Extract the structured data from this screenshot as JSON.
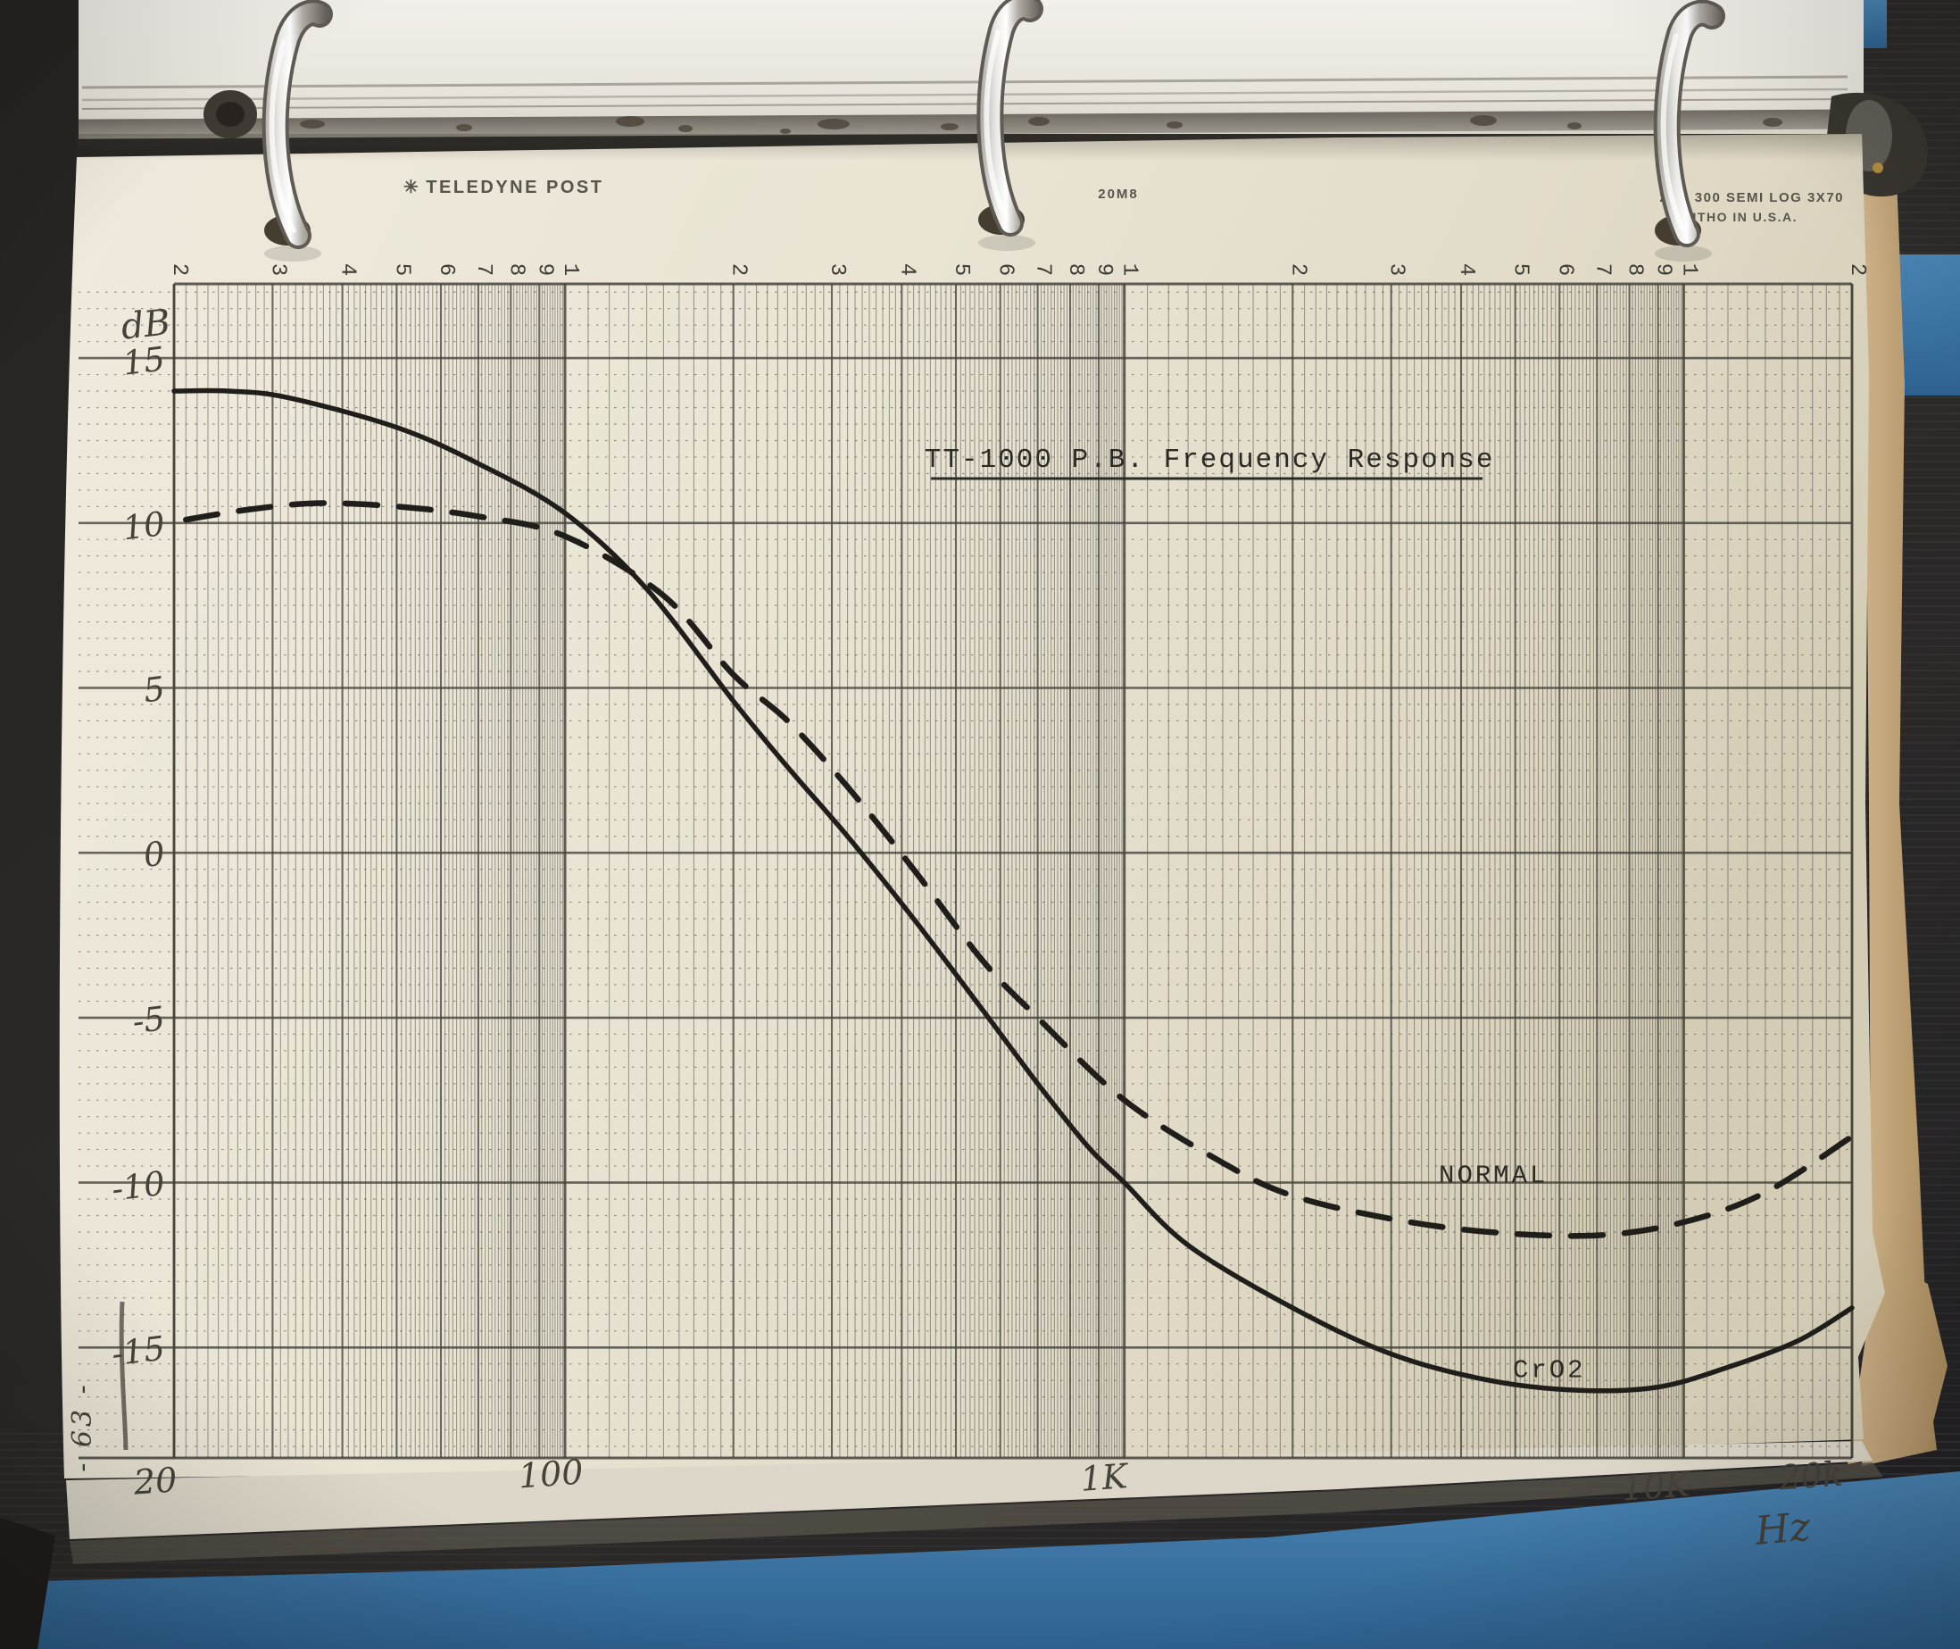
{
  "photo": {
    "binder_header": {
      "logo_glyph": "✳",
      "brand": "TELEDYNE POST",
      "center_code": "20M8",
      "right_line_1": "20M 300  SEMI LOG 3X70",
      "right_line_2": "LITHO IN U.S.A."
    },
    "page_number_vertical": "- 63 -",
    "colors": {
      "paper": "#e9e4d4",
      "grid_ink": "#44423b",
      "curve_ink": "#1f1e1b",
      "pencil": "#45423a",
      "binder_blue": "#3e79ac",
      "kraft_tan": "#c3a87c",
      "background": "#2b2927",
      "chrome": "#eceae6"
    }
  },
  "chart_data": {
    "type": "line",
    "title": "TT-1000  P.B. Frequency Response",
    "xlabel": "Hz",
    "ylabel": "dB",
    "x_scale": "log",
    "x_range": [
      20,
      20000
    ],
    "y_range_db": [
      -18.35,
      17.25
    ],
    "grid_note": "semi-log, 3 decades x 70 divisions",
    "x_axis": {
      "unit_label": "Hz",
      "tick_labels": [
        {
          "f": 20,
          "label": "20"
        },
        {
          "f": 100,
          "label": "100"
        },
        {
          "f": 1000,
          "label": "1K"
        },
        {
          "f": 10000,
          "label": "10K"
        },
        {
          "f": 20000,
          "label": "20k"
        }
      ],
      "top_scale_values": [
        20,
        30,
        40,
        50,
        60,
        70,
        80,
        90,
        100,
        200,
        300,
        400,
        500,
        600,
        700,
        800,
        900,
        1000,
        2000,
        3000,
        4000,
        5000,
        6000,
        7000,
        8000,
        9000,
        10000,
        20000
      ]
    },
    "y_axis": {
      "unit_label": "dB",
      "major_step_db": 5,
      "minor_step_db": 0.5,
      "tick_labels": [
        {
          "db": 15,
          "label": "15"
        },
        {
          "db": 10,
          "label": "10"
        },
        {
          "db": 5,
          "label": "5"
        },
        {
          "db": 0,
          "label": "0"
        },
        {
          "db": -5,
          "label": "-5"
        },
        {
          "db": -10,
          "label": "-10"
        },
        {
          "db": -15,
          "label": "-15"
        }
      ]
    },
    "series": [
      {
        "name": "CrO2",
        "line_style": "solid",
        "points": [
          [
            20,
            14
          ],
          [
            25,
            14
          ],
          [
            32,
            13.8
          ],
          [
            50,
            12.9
          ],
          [
            70,
            11.8
          ],
          [
            100,
            10.3
          ],
          [
            140,
            8.0
          ],
          [
            200,
            4.6
          ],
          [
            250,
            2.6
          ],
          [
            320,
            0.5
          ],
          [
            420,
            -2.0
          ],
          [
            560,
            -4.8
          ],
          [
            700,
            -7.0
          ],
          [
            860,
            -8.9
          ],
          [
            1000,
            -10.0
          ],
          [
            1300,
            -11.9
          ],
          [
            2000,
            -13.8
          ],
          [
            3000,
            -15.2
          ],
          [
            4500,
            -16.0
          ],
          [
            6500,
            -16.3
          ],
          [
            9000,
            -16.2
          ],
          [
            12000,
            -15.6
          ],
          [
            16000,
            -14.8
          ],
          [
            20000,
            -13.8
          ]
        ]
      },
      {
        "name": "NORMAL",
        "line_style": "dashed",
        "points": [
          [
            21,
            10.1
          ],
          [
            27,
            10.4
          ],
          [
            36,
            10.6
          ],
          [
            50,
            10.5
          ],
          [
            70,
            10.2
          ],
          [
            100,
            9.6
          ],
          [
            150,
            7.8
          ],
          [
            200,
            5.4
          ],
          [
            250,
            4.0
          ],
          [
            320,
            2.0
          ],
          [
            420,
            -0.5
          ],
          [
            560,
            -3.3
          ],
          [
            700,
            -5.0
          ],
          [
            1000,
            -7.5
          ],
          [
            1500,
            -9.4
          ],
          [
            2000,
            -10.4
          ],
          [
            3000,
            -11.1
          ],
          [
            4500,
            -11.5
          ],
          [
            7000,
            -11.6
          ],
          [
            10000,
            -11.2
          ],
          [
            14000,
            -10.3
          ],
          [
            20000,
            -8.6
          ]
        ]
      }
    ],
    "annotations": [
      {
        "text": "NORMAL",
        "f": 3650,
        "db": -10.0,
        "style": "typed"
      },
      {
        "text": "CrO2",
        "f": 4950,
        "db": -15.9,
        "style": "typed"
      }
    ],
    "title_anchor": {
      "f": 1420,
      "db": 11.7
    }
  }
}
